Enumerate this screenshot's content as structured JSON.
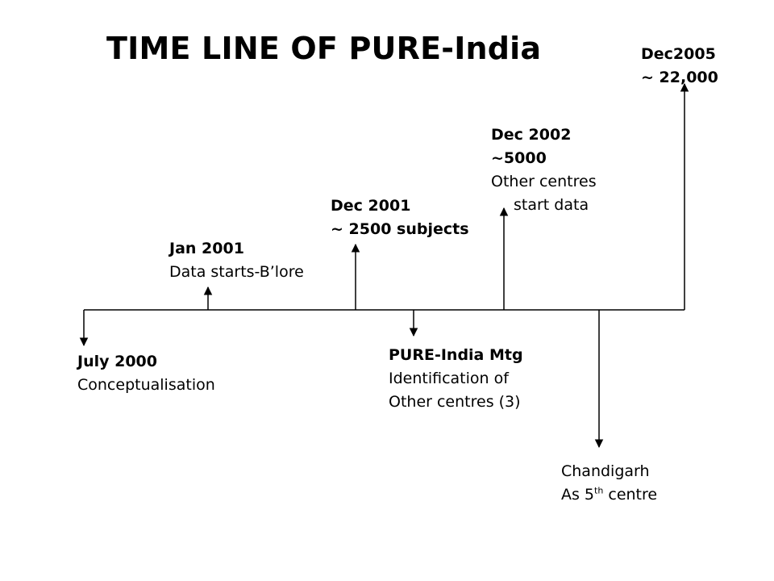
{
  "title": "TIME LINE OF PURE-India",
  "events": [
    {
      "date": "July 2000",
      "lines": [
        "Conceptualisation"
      ]
    },
    {
      "date": "Jan 2001",
      "lines": [
        "Data starts-B’lore"
      ]
    },
    {
      "date": "Dec 2001",
      "date2": "~ 2500 subjects"
    },
    {
      "date": "PURE-India Mtg",
      "lines": [
        "Identification of",
        "Other centres (3)"
      ]
    },
    {
      "date": "Dec 2002",
      "date2": "~5000",
      "lines": [
        "Other centres",
        "start data"
      ]
    },
    {
      "lines": [
        "Chandigarh"
      ],
      "ordinal_prefix": "As 5",
      "ordinal_sup": "th",
      "ordinal_suffix": " centre"
    },
    {
      "date": "Dec2005",
      "date2": "~ 22,000"
    }
  ]
}
